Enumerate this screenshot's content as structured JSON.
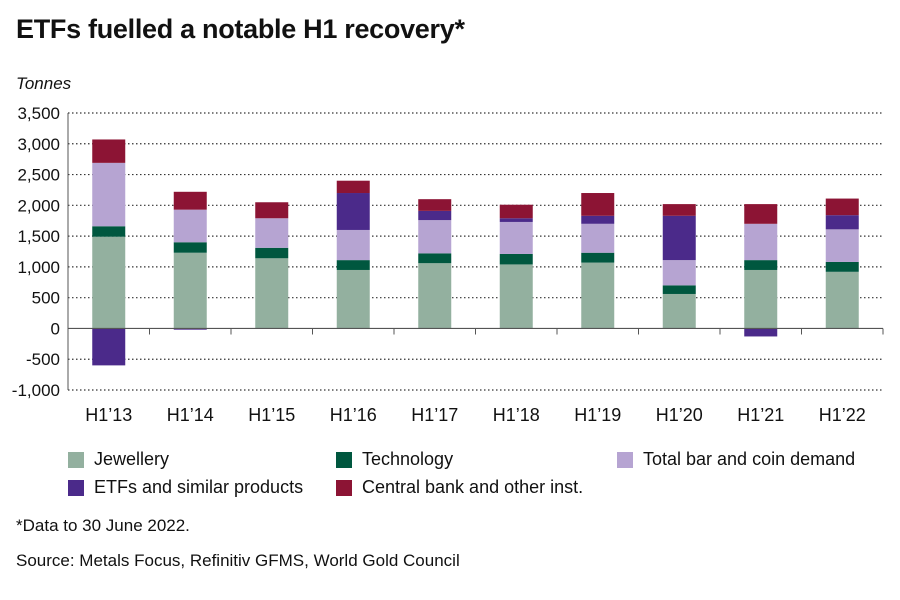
{
  "title": "ETFs fuelled a notable H1 recovery*",
  "footnote": "*Data to 30 June 2022.",
  "source": "Source: Metals Focus, Refinitiv GFMS, World Gold Council",
  "chart_data": {
    "type": "bar",
    "stacked": true,
    "title": "ETFs fuelled a notable H1 recovery*",
    "ylabel": "Tonnes",
    "ylim": [
      -1000,
      3500
    ],
    "yticks": [
      -1000,
      -500,
      0,
      500,
      1000,
      1500,
      2000,
      2500,
      3000,
      3500
    ],
    "ytick_labels": [
      "-1,000",
      "-500",
      "0",
      "500",
      "1,000",
      "1,500",
      "2,000",
      "2,500",
      "3,000",
      "3,500"
    ],
    "grid": "horizontal dotted",
    "legend_position": "bottom",
    "categories": [
      "H1’13",
      "H1’14",
      "H1’15",
      "H1’16",
      "H1’17",
      "H1’18",
      "H1’19",
      "H1’20",
      "H1’21",
      "H1’22"
    ],
    "series": [
      {
        "name": "Jewellery",
        "color": "#93b09f",
        "values": [
          1490,
          1230,
          1140,
          950,
          1060,
          1040,
          1070,
          560,
          950,
          920
        ]
      },
      {
        "name": "Technology",
        "color": "#00573f",
        "values": [
          170,
          170,
          170,
          160,
          160,
          170,
          160,
          140,
          160,
          160
        ]
      },
      {
        "name": "Total bar and coin demand",
        "color": "#b6a4d2",
        "values": [
          1030,
          530,
          480,
          490,
          540,
          520,
          470,
          410,
          590,
          530
        ]
      },
      {
        "name": "ETFs and similar products",
        "color": "#4b2a8a",
        "values": [
          -600,
          -20,
          0,
          600,
          150,
          60,
          130,
          720,
          -130,
          230
        ]
      },
      {
        "name": "Central bank and other inst.",
        "color": "#8c1434",
        "values": [
          380,
          290,
          260,
          200,
          190,
          220,
          370,
          190,
          320,
          270
        ]
      }
    ]
  }
}
